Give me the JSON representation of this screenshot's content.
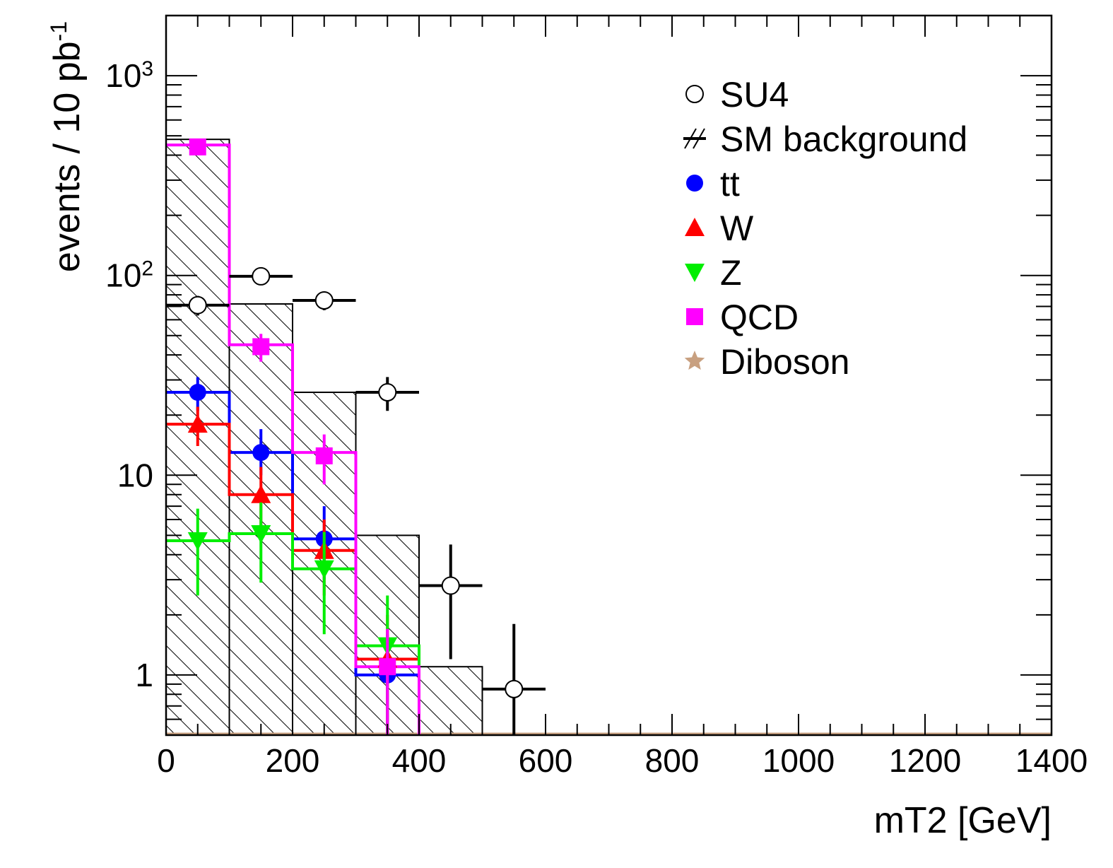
{
  "chart_data": {
    "type": "histogram",
    "xlabel": "mT2 [GeV]",
    "ylabel": "events / 10 pb",
    "ylabel_sup": "-1",
    "xlim": [
      0,
      1400
    ],
    "ylim": [
      0.5,
      2000
    ],
    "yscale": "log",
    "grid": false,
    "legend_position": "top-right",
    "x_ticks": [
      {
        "value": 0,
        "label": "0"
      },
      {
        "value": 200,
        "label": "200"
      },
      {
        "value": 400,
        "label": "400"
      },
      {
        "value": 600,
        "label": "600"
      },
      {
        "value": 800,
        "label": "800"
      },
      {
        "value": 1000,
        "label": "1000"
      },
      {
        "value": 1200,
        "label": "1200"
      },
      {
        "value": 1400,
        "label": "1400"
      }
    ],
    "y_ticks": [
      {
        "value": 1,
        "label": "1",
        "sup": ""
      },
      {
        "value": 10,
        "label": "10",
        "sup": ""
      },
      {
        "value": 100,
        "label": "10",
        "sup": "2"
      },
      {
        "value": 1000,
        "label": "10",
        "sup": "3"
      }
    ],
    "bin_edges": [
      0,
      100,
      200,
      300,
      400,
      500,
      600,
      700,
      800,
      900,
      1000,
      1100,
      1200,
      1300,
      1400
    ],
    "sm_background": {
      "name": "SM background",
      "values": [
        480,
        72,
        26,
        5,
        1.1,
        0,
        0,
        0,
        0,
        0,
        0,
        0,
        0,
        0
      ]
    },
    "su4": {
      "name": "SU4",
      "points": [
        {
          "x": 50,
          "y": 71,
          "ylo": 63,
          "yhi": 79
        },
        {
          "x": 150,
          "y": 99,
          "ylo": 90,
          "yhi": 108
        },
        {
          "x": 250,
          "y": 75,
          "ylo": 67,
          "yhi": 83
        },
        {
          "x": 350,
          "y": 26,
          "ylo": 21,
          "yhi": 31
        },
        {
          "x": 450,
          "y": 2.8,
          "ylo": 1.2,
          "yhi": 4.5
        },
        {
          "x": 550,
          "y": 0.85,
          "ylo": 0.5,
          "yhi": 1.8
        }
      ]
    },
    "series": [
      {
        "name": "tt",
        "color": "#0000ff",
        "marker": "circle",
        "hist": [
          26,
          13,
          4.8,
          1.0
        ],
        "points": [
          {
            "x": 50,
            "y": 26,
            "ylo": 21,
            "yhi": 31
          },
          {
            "x": 150,
            "y": 13,
            "ylo": 10,
            "yhi": 17
          },
          {
            "x": 250,
            "y": 4.8,
            "ylo": 3.0,
            "yhi": 7.0
          },
          {
            "x": 350,
            "y": 1.0,
            "ylo": 0.5,
            "yhi": 1.6
          }
        ]
      },
      {
        "name": "W",
        "color": "#ff0000",
        "marker": "triangle-up",
        "hist": [
          18,
          8,
          4.2,
          1.2
        ],
        "points": [
          {
            "x": 50,
            "y": 18,
            "ylo": 14,
            "yhi": 22
          },
          {
            "x": 150,
            "y": 8,
            "ylo": 5.5,
            "yhi": 11
          },
          {
            "x": 250,
            "y": 4.2,
            "ylo": 2.5,
            "yhi": 6.0
          },
          {
            "x": 350,
            "y": 1.2,
            "ylo": 0.5,
            "yhi": 2.0
          }
        ]
      },
      {
        "name": "Z",
        "color": "#00ee00",
        "marker": "triangle-down",
        "hist": [
          4.7,
          5.1,
          3.4,
          1.4
        ],
        "points": [
          {
            "x": 50,
            "y": 4.7,
            "ylo": 2.5,
            "yhi": 6.8
          },
          {
            "x": 150,
            "y": 5.1,
            "ylo": 2.9,
            "yhi": 7.3
          },
          {
            "x": 250,
            "y": 3.4,
            "ylo": 1.6,
            "yhi": 5.2
          },
          {
            "x": 350,
            "y": 1.4,
            "ylo": 0.5,
            "yhi": 2.5
          }
        ]
      },
      {
        "name": "QCD",
        "color": "#ff00ff",
        "marker": "square",
        "hist": [
          450,
          45,
          13,
          1.1
        ],
        "points": [
          {
            "x": 50,
            "y": 440,
            "ylo": 420,
            "yhi": 460
          },
          {
            "x": 150,
            "y": 44,
            "ylo": 37,
            "yhi": 51
          },
          {
            "x": 250,
            "y": 12.5,
            "ylo": 9.0,
            "yhi": 16.0
          },
          {
            "x": 350,
            "y": 1.1,
            "ylo": 0.5,
            "yhi": 1.7
          }
        ]
      },
      {
        "name": "Diboson",
        "color": "#c8a080",
        "marker": "star",
        "hist": [],
        "points": []
      }
    ],
    "legend": [
      {
        "label": "SU4",
        "marker": "open-circle"
      },
      {
        "label": "SM background",
        "marker": "hatch"
      },
      {
        "label": "tt",
        "marker": "circle",
        "color": "#0000ff"
      },
      {
        "label": "W",
        "marker": "triangle-up",
        "color": "#ff0000"
      },
      {
        "label": "Z",
        "marker": "triangle-down",
        "color": "#00ee00"
      },
      {
        "label": "QCD",
        "marker": "square",
        "color": "#ff00ff"
      },
      {
        "label": "Diboson",
        "marker": "star",
        "color": "#c8a080"
      }
    ]
  }
}
